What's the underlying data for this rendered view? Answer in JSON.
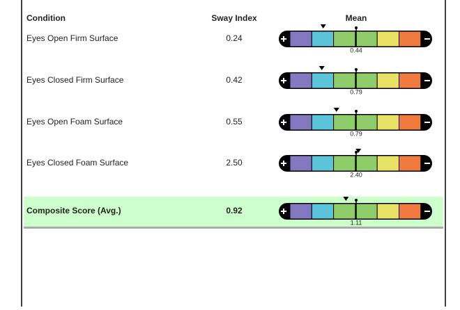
{
  "header": {
    "columns": [
      "Condition",
      "Sway Index",
      "Mean"
    ]
  },
  "rows": [
    {
      "condition": "Eyes Open Firm Surface",
      "sway_index": "0.24",
      "mean": "0.44"
    },
    {
      "condition": "Eyes Closed Firm Surface",
      "sway_index": "0.42",
      "mean": "0.79"
    },
    {
      "condition": "Eyes Open Foam Surface",
      "sway_index": "0.55",
      "mean": "0.79"
    },
    {
      "condition": "Eyes Closed Foam Surface",
      "sway_index": "2.50",
      "mean": "2.40"
    }
  ],
  "composite": {
    "condition": "Composite Score (Avg.)",
    "sway_index": "0.92",
    "mean": "1.11"
  }
}
